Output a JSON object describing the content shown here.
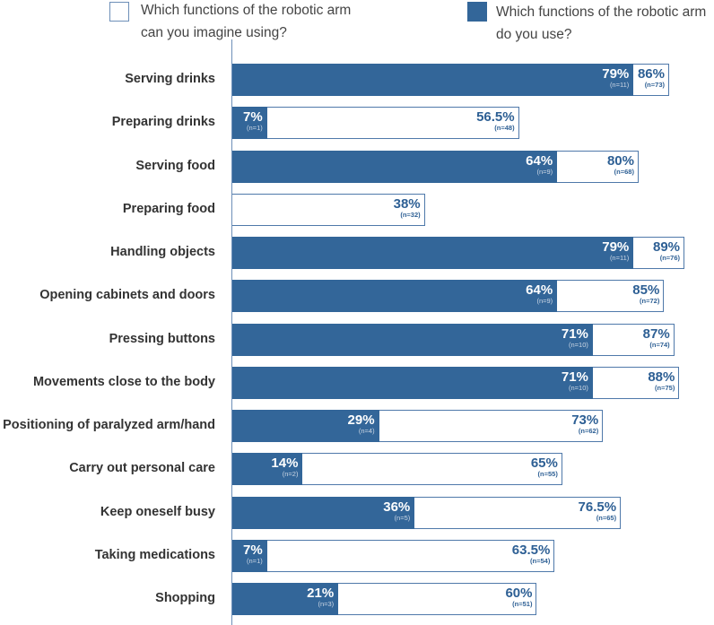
{
  "legend": [
    {
      "label_line1": "Which functions of the robotic arm",
      "label_line2": "can you imagine using?",
      "style": "outline",
      "color": "#4f79aa"
    },
    {
      "label_line1": "Which functions of the robotic arm",
      "label_line2": "do you use?",
      "style": "filled",
      "color": "#336699"
    }
  ],
  "chart_data": {
    "type": "bar",
    "orientation": "horizontal",
    "overlaid": true,
    "xlim": [
      0,
      100
    ],
    "grid": false,
    "legend_position": "top",
    "categories": [
      "Serving drinks",
      "Preparing drinks",
      "Serving food",
      "Preparing food",
      "Handling objects",
      "Opening cabinets and doors",
      "Pressing buttons",
      "Movements close to the body",
      "Positioning of paralyzed arm/hand",
      "Carry out personal care",
      "Keep oneself busy",
      "Taking medications",
      "Shopping"
    ],
    "series": [
      {
        "name": "Which functions of the robotic arm can you imagine using?",
        "color": "#ffffff",
        "border": "#4f79aa",
        "values": [
          86,
          56.5,
          80,
          38,
          89,
          85,
          87,
          88,
          73,
          65,
          76.5,
          63.5,
          60
        ],
        "labels": [
          "86%",
          "56.5%",
          "80%",
          "38%",
          "89%",
          "85%",
          "87%",
          "88%",
          "73%",
          "65%",
          "76.5%",
          "63.5%",
          "60%"
        ],
        "n": [
          "(n=73)",
          "(n=48)",
          "(n=68)",
          "(n=32)",
          "(n=76)",
          "(n=72)",
          "(n=74)",
          "(n=75)",
          "(n=62)",
          "(n=55)",
          "(n=65)",
          "(n=54)",
          "(n=51)"
        ]
      },
      {
        "name": "Which functions of the robotic arm do you use?",
        "color": "#336699",
        "values": [
          79,
          7,
          64,
          0,
          79,
          64,
          71,
          71,
          29,
          14,
          36,
          7,
          21
        ],
        "labels": [
          "79%",
          "7%",
          "64%",
          "",
          "79%",
          "64%",
          "71%",
          "71%",
          "29%",
          "14%",
          "36%",
          "7%",
          "21%"
        ],
        "n": [
          "(n=11)",
          "(n=1)",
          "(n=9)",
          "",
          "(n=11)",
          "(n=9)",
          "(n=10)",
          "(n=10)",
          "(n=4)",
          "(n=2)",
          "(n=5)",
          "(n=1)",
          "(n=3)"
        ]
      }
    ]
  }
}
